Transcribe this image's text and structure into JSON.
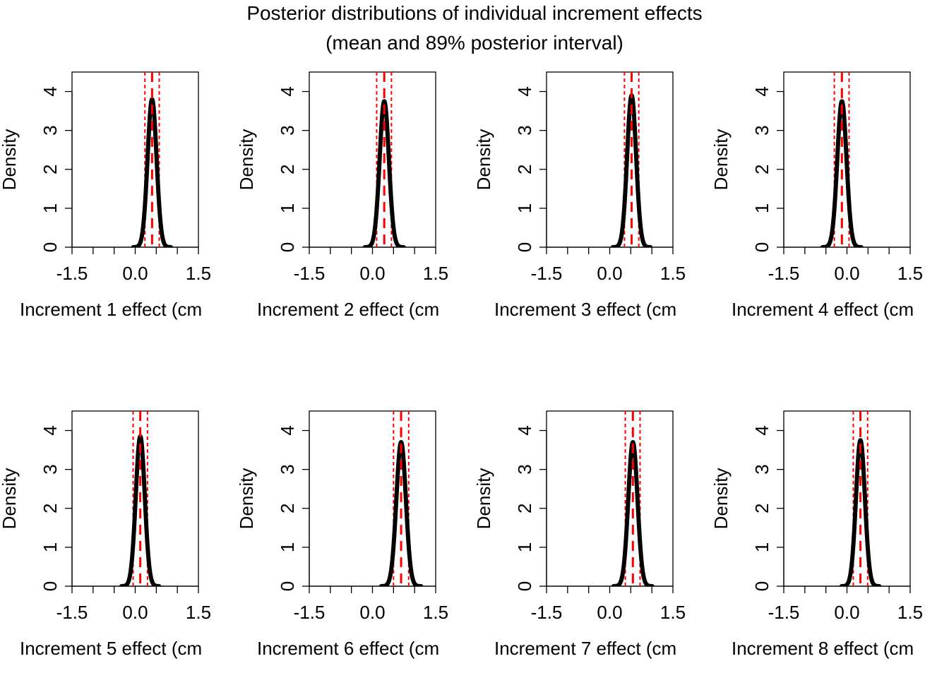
{
  "figure": {
    "title_line1": "Posterior distributions of individual increment effects",
    "title_line2": "(mean and 89% posterior interval)"
  },
  "colors": {
    "density_line": "#000000",
    "mean_line": "#ff0000",
    "interval_line": "#ff0000",
    "axis": "#000000"
  },
  "chart_data": [
    {
      "type": "line",
      "xlabel": "Increment 1 effect (cm",
      "ylabel": "Density",
      "xlim": [
        -1.5,
        1.5
      ],
      "ylim": [
        0,
        4.5
      ],
      "xticks": [
        "-1.5",
        "0.0",
        "1.5"
      ],
      "yticks": [
        "0",
        "1",
        "2",
        "3",
        "4"
      ],
      "mean": 0.4,
      "interval": [
        0.23,
        0.57
      ],
      "peak": 3.8
    },
    {
      "type": "line",
      "xlabel": "Increment 2 effect (cm",
      "ylabel": "Density",
      "xlim": [
        -1.5,
        1.5
      ],
      "ylim": [
        0,
        4.5
      ],
      "xticks": [
        "-1.5",
        "0.0",
        "1.5"
      ],
      "yticks": [
        "0",
        "1",
        "2",
        "3",
        "4"
      ],
      "mean": 0.28,
      "interval": [
        0.1,
        0.45
      ],
      "peak": 3.75
    },
    {
      "type": "line",
      "xlabel": "Increment 3 effect (cm",
      "ylabel": "Density",
      "xlim": [
        -1.5,
        1.5
      ],
      "ylim": [
        0,
        4.5
      ],
      "xticks": [
        "-1.5",
        "0.0",
        "1.5"
      ],
      "yticks": [
        "0",
        "1",
        "2",
        "3",
        "4"
      ],
      "mean": 0.52,
      "interval": [
        0.35,
        0.69
      ],
      "peak": 3.9
    },
    {
      "type": "line",
      "xlabel": "Increment 4 effect (cm",
      "ylabel": "Density",
      "xlim": [
        -1.5,
        1.5
      ],
      "ylim": [
        0,
        4.5
      ],
      "xticks": [
        "-1.5",
        "0.0",
        "1.5"
      ],
      "yticks": [
        "0",
        "1",
        "2",
        "3",
        "4"
      ],
      "mean": -0.12,
      "interval": [
        -0.3,
        0.05
      ],
      "peak": 3.75
    },
    {
      "type": "line",
      "xlabel": "Increment 5 effect (cm",
      "ylabel": "Density",
      "xlim": [
        -1.5,
        1.5
      ],
      "ylim": [
        0,
        4.5
      ],
      "xticks": [
        "-1.5",
        "0.0",
        "1.5"
      ],
      "yticks": [
        "0",
        "1",
        "2",
        "3",
        "4"
      ],
      "mean": 0.12,
      "interval": [
        -0.05,
        0.29
      ],
      "peak": 3.85
    },
    {
      "type": "line",
      "xlabel": "Increment 6 effect (cm",
      "ylabel": "Density",
      "xlim": [
        -1.5,
        1.5
      ],
      "ylim": [
        0,
        4.5
      ],
      "xticks": [
        "-1.5",
        "0.0",
        "1.5"
      ],
      "yticks": [
        "0",
        "1",
        "2",
        "3",
        "4"
      ],
      "mean": 0.68,
      "interval": [
        0.5,
        0.86
      ],
      "peak": 3.7
    },
    {
      "type": "line",
      "xlabel": "Increment 7 effect (cm",
      "ylabel": "Density",
      "xlim": [
        -1.5,
        1.5
      ],
      "ylim": [
        0,
        4.5
      ],
      "xticks": [
        "-1.5",
        "0.0",
        "1.5"
      ],
      "yticks": [
        "0",
        "1",
        "2",
        "3",
        "4"
      ],
      "mean": 0.55,
      "interval": [
        0.37,
        0.72
      ],
      "peak": 3.7
    },
    {
      "type": "line",
      "xlabel": "Increment 8 effect (cm",
      "ylabel": "Density",
      "xlim": [
        -1.5,
        1.5
      ],
      "ylim": [
        0,
        4.5
      ],
      "xticks": [
        "-1.5",
        "0.0",
        "1.5"
      ],
      "yticks": [
        "0",
        "1",
        "2",
        "3",
        "4"
      ],
      "mean": 0.32,
      "interval": [
        0.15,
        0.49
      ],
      "peak": 3.75
    }
  ]
}
